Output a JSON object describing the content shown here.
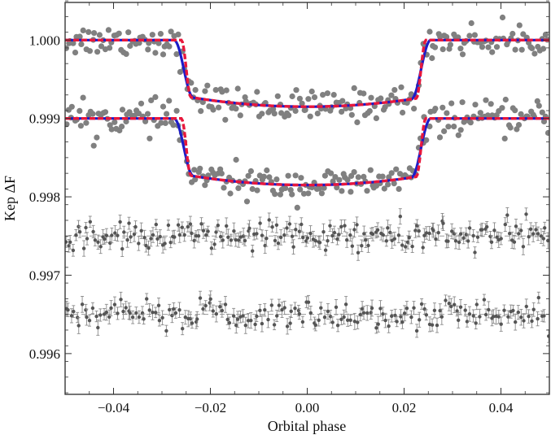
{
  "chart_data": {
    "type": "scatter",
    "title": "",
    "xlabel": "Orbital phase",
    "ylabel": "Kep ΔF",
    "xlim": [
      -0.05,
      0.05
    ],
    "ylim": [
      0.99548,
      1.00048
    ],
    "xticks": [
      {
        "value": -0.04,
        "label": "−0.04"
      },
      {
        "value": -0.02,
        "label": "−0.02"
      },
      {
        "value": 0.0,
        "label": "0.00"
      },
      {
        "value": 0.02,
        "label": "0.02"
      },
      {
        "value": 0.04,
        "label": "0.04"
      }
    ],
    "yticks": [
      {
        "value": 1.0,
        "label": "1.000"
      },
      {
        "value": 0.999,
        "label": "0.999"
      },
      {
        "value": 0.998,
        "label": "0.998"
      },
      {
        "value": 0.997,
        "label": "0.997"
      },
      {
        "value": 0.996,
        "label": "0.996"
      }
    ],
    "colors": {
      "data_points": "#808080",
      "residual_points": "#555555",
      "model_blue": "#1c1cc8",
      "model_red": "#e8183c",
      "frame": "#333333"
    },
    "series": [
      {
        "name": "light curve (upper)",
        "kind": "points",
        "baseline": 1.0,
        "transit_depth": 0.00073,
        "scatter": 0.0001,
        "n_points": 220
      },
      {
        "name": "light curve (lower, offset)",
        "kind": "points",
        "baseline": 0.999,
        "transit_depth": 0.00073,
        "scatter": 0.0001,
        "n_points": 220
      },
      {
        "name": "model (blue, solid)",
        "kind": "line",
        "baselines": [
          1.0,
          0.999
        ],
        "t1": -0.0275,
        "t2": -0.0235,
        "t3": 0.0215,
        "t4": 0.0255,
        "curvature": 0.00012
      },
      {
        "name": "model (red, dashed)",
        "kind": "dashed-line",
        "baselines": [
          1.0,
          0.999
        ],
        "t1": -0.026,
        "t2": -0.024,
        "t3": 0.0225,
        "t4": 0.0245,
        "curvature": 0.00012
      },
      {
        "name": "residuals (upper)",
        "kind": "points-with-errorbars",
        "baseline": 0.9975,
        "scatter": 0.0001,
        "error": 8e-05,
        "n_points": 200
      },
      {
        "name": "residuals (lower)",
        "kind": "points-with-errorbars",
        "baseline": 0.9965,
        "scatter": 0.0001,
        "error": 8e-05,
        "n_points": 180
      }
    ]
  }
}
